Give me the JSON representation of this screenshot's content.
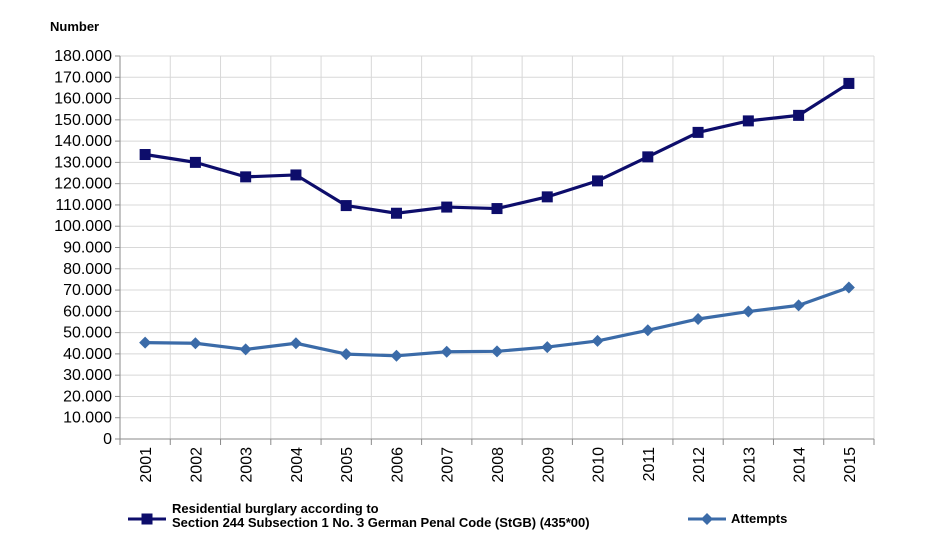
{
  "chart_data": {
    "type": "line",
    "title": "",
    "ylabel": "Number",
    "xlabel": "",
    "ylim": [
      0,
      180000
    ],
    "ytick_step": 10000,
    "grid": true,
    "legend_position": "bottom",
    "categories": [
      "2001",
      "2002",
      "2003",
      "2004",
      "2005",
      "2006",
      "2007",
      "2008",
      "2009",
      "2010",
      "2011",
      "2012",
      "2013",
      "2014",
      "2015"
    ],
    "y_tick_labels": [
      "0",
      "10.000",
      "20.000",
      "30.000",
      "40.000",
      "50.000",
      "60.000",
      "70.000",
      "80.000",
      "90.000",
      "100.000",
      "110.000",
      "120.000",
      "130.000",
      "140.000",
      "150.000",
      "160.000",
      "170.000",
      "180.000"
    ],
    "series": [
      {
        "name": "Residential burglary according to Section 244 Subsection 1 No. 3 German Penal Code (StGB) (435*00)",
        "legend_lines": [
          "Residential burglary according to",
          "Section 244 Subsection 1 No. 3 German Penal Code (StGB) (435*00)"
        ],
        "marker": "square",
        "color": "#0d0d6b",
        "values": [
          133700,
          130000,
          123200,
          124100,
          109700,
          106100,
          109000,
          108300,
          113800,
          121300,
          132600,
          144100,
          149500,
          152100,
          167100
        ]
      },
      {
        "name": "Attempts",
        "legend_lines": [
          "Attempts"
        ],
        "marker": "diamond",
        "color": "#3b6ba8",
        "values": [
          45300,
          45000,
          42100,
          45000,
          39900,
          39100,
          41000,
          41200,
          43200,
          46100,
          51100,
          56400,
          59900,
          62800,
          71200
        ]
      }
    ]
  }
}
